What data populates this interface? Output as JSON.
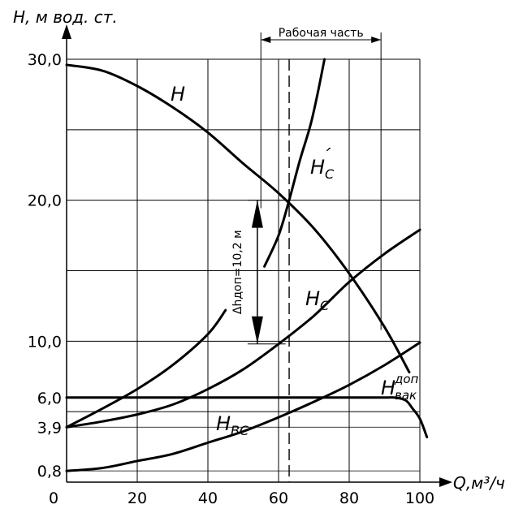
{
  "chart_data": {
    "type": "line",
    "ylabel": "H, м вод. ст.",
    "xlabel": "Q,м³/ч",
    "xlim": [
      0,
      100
    ],
    "ylim": [
      0,
      30
    ],
    "x_ticks": [
      "0",
      "20",
      "40",
      "60",
      "80",
      "100"
    ],
    "x_tick_values": [
      0,
      20,
      40,
      60,
      80,
      100
    ],
    "y_ticks": [
      "0,8",
      "3,9",
      "6,0",
      "10,0",
      "20,0",
      "30,0"
    ],
    "y_tick_values": [
      0.8,
      3.9,
      6.0,
      10.0,
      20.0,
      30.0
    ],
    "grid": true,
    "grid_x": [
      20,
      40,
      60,
      80,
      100
    ],
    "grid_y": [
      5,
      10,
      15,
      20,
      25,
      30
    ],
    "working_range": {
      "label": "Рабочая часть",
      "x": [
        55,
        89
      ]
    },
    "dashed_line": {
      "x": 63
    },
    "thin_line": {
      "x": 60
    },
    "delta_annotation": {
      "label": "Δhдоп=10,2 м",
      "x": 54,
      "y_top": 20.0,
      "y_bottom": 9.8
    },
    "series": [
      {
        "name": "H",
        "x": [
          0,
          10,
          20,
          30,
          40,
          50,
          60,
          70,
          80,
          90,
          97
        ],
        "y": [
          29.6,
          29.2,
          28.1,
          26.6,
          24.8,
          22.6,
          20.5,
          18.0,
          14.8,
          11.0,
          7.8
        ]
      },
      {
        "name": "H_C",
        "x": [
          0,
          10,
          20,
          30,
          40,
          50,
          60,
          70,
          80,
          90,
          100
        ],
        "y": [
          3.9,
          4.3,
          4.8,
          5.5,
          6.6,
          8.0,
          9.8,
          11.8,
          14.2,
          16.2,
          17.9
        ]
      },
      {
        "name": "H'_C",
        "x": [
          56,
          60,
          63,
          66,
          69,
          71,
          73
        ],
        "y": [
          15.3,
          17.5,
          20.0,
          22.8,
          25.3,
          27.5,
          30.0
        ]
      },
      {
        "name": "",
        "x": [
          0,
          10,
          20,
          30,
          40,
          45
        ],
        "y": [
          3.9,
          5.2,
          6.6,
          8.3,
          10.5,
          12.2
        ]
      },
      {
        "name": "H_BC",
        "x": [
          0,
          10,
          20,
          30,
          40,
          50,
          60,
          70,
          80,
          90,
          100
        ],
        "y": [
          0.8,
          1.0,
          1.5,
          2.0,
          2.8,
          3.6,
          4.6,
          5.7,
          6.9,
          8.3,
          9.9
        ]
      },
      {
        "name": "H_вак^доп",
        "x": [
          0,
          20,
          40,
          60,
          80,
          90,
          93,
          96,
          98,
          100,
          102
        ],
        "y": [
          6.0,
          6.0,
          6.0,
          6.0,
          6.0,
          6.0,
          6.0,
          5.8,
          5.2,
          4.5,
          3.2
        ]
      }
    ],
    "labels": {
      "H": {
        "main": "H"
      },
      "H_prime": {
        "main": "H",
        "sub": "C",
        "mark": "´"
      },
      "H_C": {
        "main": "H",
        "sub": "C"
      },
      "H_BC": {
        "main": "H",
        "sub": "BC"
      },
      "H_dop": {
        "main": "H",
        "sup": "доп",
        "sub": "вак"
      }
    }
  }
}
